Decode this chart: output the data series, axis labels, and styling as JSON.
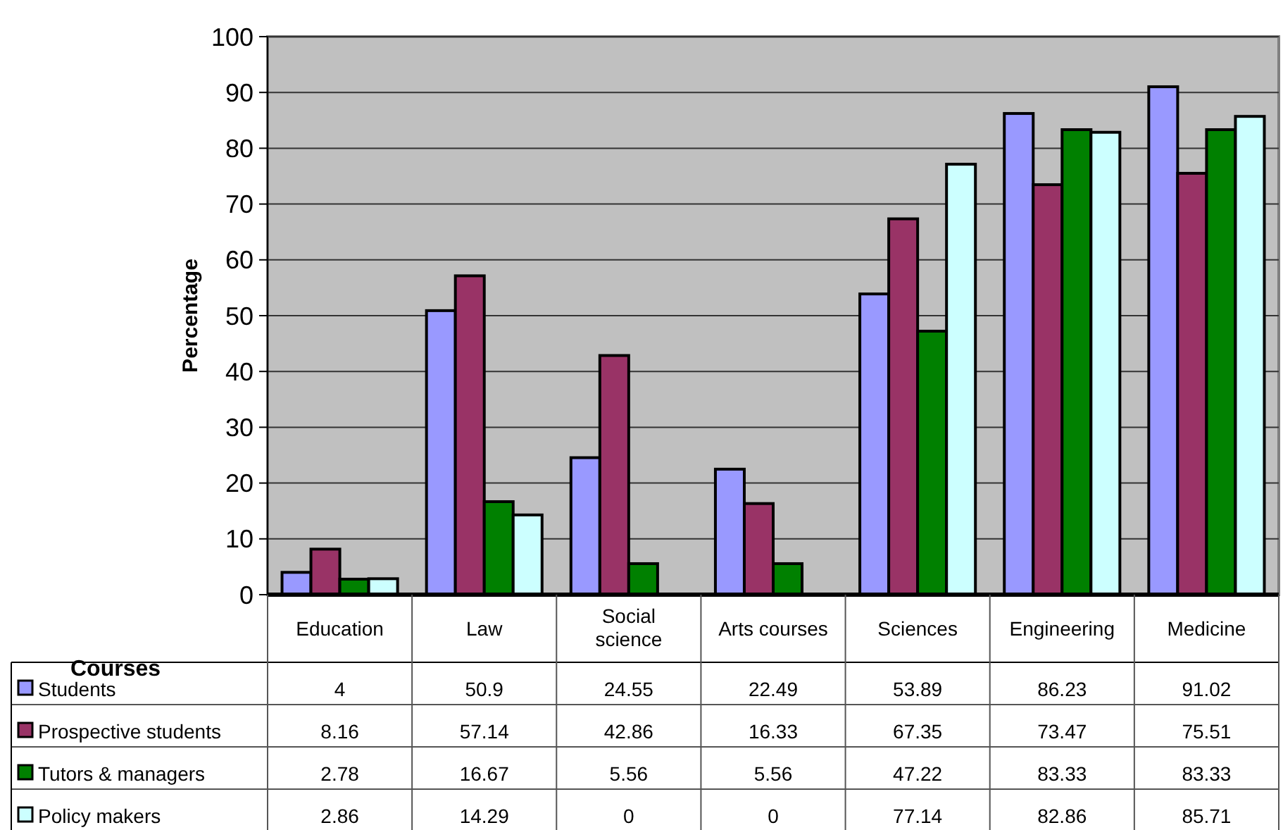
{
  "chart_data": {
    "type": "bar",
    "xlabel": "Courses",
    "ylabel": "Percentage",
    "categories": [
      "Education",
      "Law",
      "Social science",
      "Arts courses",
      "Sciences",
      "Engineering",
      "Medicine"
    ],
    "series": [
      {
        "name": "Students",
        "color": "#9999ff",
        "values": [
          4,
          50.9,
          24.55,
          22.49,
          53.89,
          86.23,
          91.02
        ]
      },
      {
        "name": "Prospective students",
        "color": "#993366",
        "values": [
          8.16,
          57.14,
          42.86,
          16.33,
          67.35,
          73.47,
          75.51
        ]
      },
      {
        "name": "Tutors & managers",
        "color": "#008000",
        "values": [
          2.78,
          16.67,
          5.56,
          5.56,
          47.22,
          83.33,
          83.33
        ]
      },
      {
        "name": "Policy makers",
        "color": "#ccffff",
        "values": [
          2.86,
          14.29,
          0,
          0,
          77.14,
          82.86,
          85.71
        ]
      }
    ],
    "ylim": [
      0,
      100
    ],
    "yticks": [
      0,
      10,
      20,
      30,
      40,
      50,
      60,
      70,
      80,
      90,
      100
    ],
    "grid": "y",
    "legend": "bottom left",
    "data_labels": true
  }
}
